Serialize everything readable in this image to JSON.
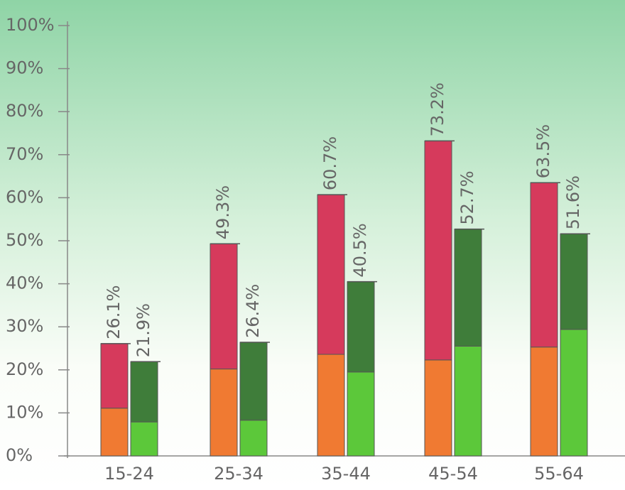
{
  "chart_data": {
    "type": "grouped-stacked-bar",
    "categories": [
      "15-24",
      "25-34",
      "35-44",
      "45-54",
      "55-64"
    ],
    "ylim": [
      0,
      100
    ],
    "yticks": [
      {
        "value": 0,
        "label": "0%"
      },
      {
        "value": 10,
        "label": "10%"
      },
      {
        "value": 20,
        "label": "20%"
      },
      {
        "value": 30,
        "label": "30%"
      },
      {
        "value": 40,
        "label": "40%"
      },
      {
        "value": 50,
        "label": "50%"
      },
      {
        "value": 60,
        "label": "60%"
      },
      {
        "value": 70,
        "label": "70%"
      },
      {
        "value": 80,
        "label": "80%"
      },
      {
        "value": 90,
        "label": "90%"
      },
      {
        "value": 100,
        "label": "100%"
      }
    ],
    "bars": [
      {
        "totals": [
          26.1,
          49.3,
          60.7,
          73.2,
          63.5
        ],
        "value_labels": [
          "26.1%",
          "49.3%",
          "60.7%",
          "73.2%",
          "63.5%"
        ],
        "segments": [
          {
            "color": "#f07a32",
            "values": [
              11.1,
              20.2,
              23.6,
              22.3,
              25.3
            ]
          },
          {
            "color": "#d63a5c",
            "values": [
              15.0,
              29.1,
              37.1,
              50.9,
              38.2
            ]
          }
        ]
      },
      {
        "totals": [
          21.9,
          26.4,
          40.5,
          52.7,
          51.6
        ],
        "value_labels": [
          "21.9%",
          "26.4%",
          "40.5%",
          "52.7%",
          "51.6%"
        ],
        "segments": [
          {
            "color": "#5cc83a",
            "values": [
              7.9,
              8.3,
              19.5,
              25.5,
              29.4
            ]
          },
          {
            "color": "#3f7d3a",
            "values": [
              14.0,
              18.1,
              21.0,
              27.2,
              22.2
            ]
          }
        ]
      }
    ]
  }
}
